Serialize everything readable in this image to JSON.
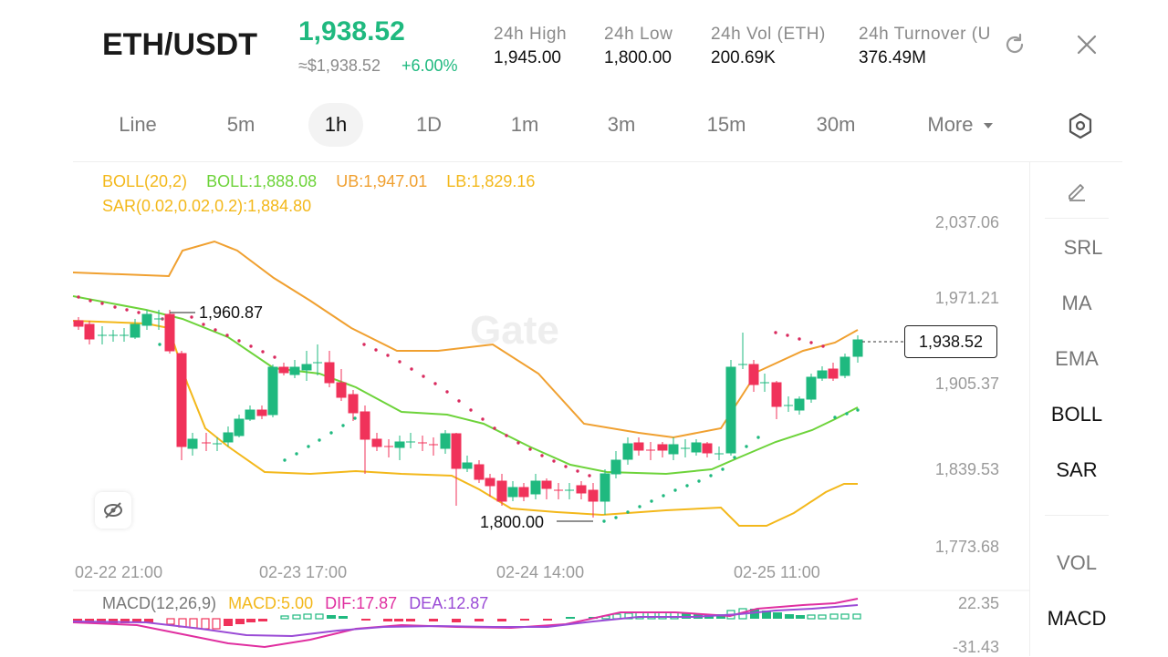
{
  "header": {
    "pair": "ETH/USDT",
    "price": "1,938.52",
    "usd_price": "≈$1,938.52",
    "change": "+6.00%",
    "stats": [
      {
        "label": "24h  High",
        "value": "1,945.00"
      },
      {
        "label": "24h  Low",
        "value": "1,800.00"
      },
      {
        "label": "24h  Vol (ETH)",
        "value": "200.69K"
      },
      {
        "label": "24h  Turnover (U",
        "value": "376.49M"
      }
    ]
  },
  "tabs": [
    "Line",
    "5m",
    "1h",
    "1D",
    "1m",
    "3m",
    "15m",
    "30m"
  ],
  "active_tab": "1h",
  "more_label": "More",
  "indicators": {
    "boll_name": "BOLL(20,2)",
    "boll_value": "BOLL:1,888.08",
    "ub": "UB:1,947.01",
    "lb": "LB:1,829.16",
    "sar": "SAR(0.02,0.02,0.2):1,884.80"
  },
  "watermark": "Gate",
  "price_axis": [
    "2,037.06",
    "1,971.21",
    "1,905.37",
    "1,839.53",
    "1,773.68"
  ],
  "time_axis": [
    "02-22 21:00",
    "02-23 17:00",
    "02-24 14:00",
    "02-25 11:00"
  ],
  "annotations": {
    "high": "1,960.87",
    "low": "1,800.00",
    "current": "1,938.52"
  },
  "macd": {
    "name": "MACD(12,26,9)",
    "macd": "MACD:5.00",
    "dif": "DIF:17.87",
    "dea": "DEA:12.87",
    "axis_top": "22.35",
    "axis_bottom": "-31.43"
  },
  "sidebar": [
    "SRL",
    "MA",
    "EMA",
    "BOLL",
    "SAR",
    "VOL",
    "MACD"
  ],
  "sidebar_active": [
    "BOLL",
    "SAR",
    "MACD"
  ],
  "colors": {
    "up": "#1fb97f",
    "down": "#f0325a",
    "ub": "#f0a030",
    "mid": "#6dd33a",
    "lb": "#f3b81b",
    "sar": "#d92a5e",
    "dif": "#e02fa0",
    "dea": "#9a4bd6"
  }
}
